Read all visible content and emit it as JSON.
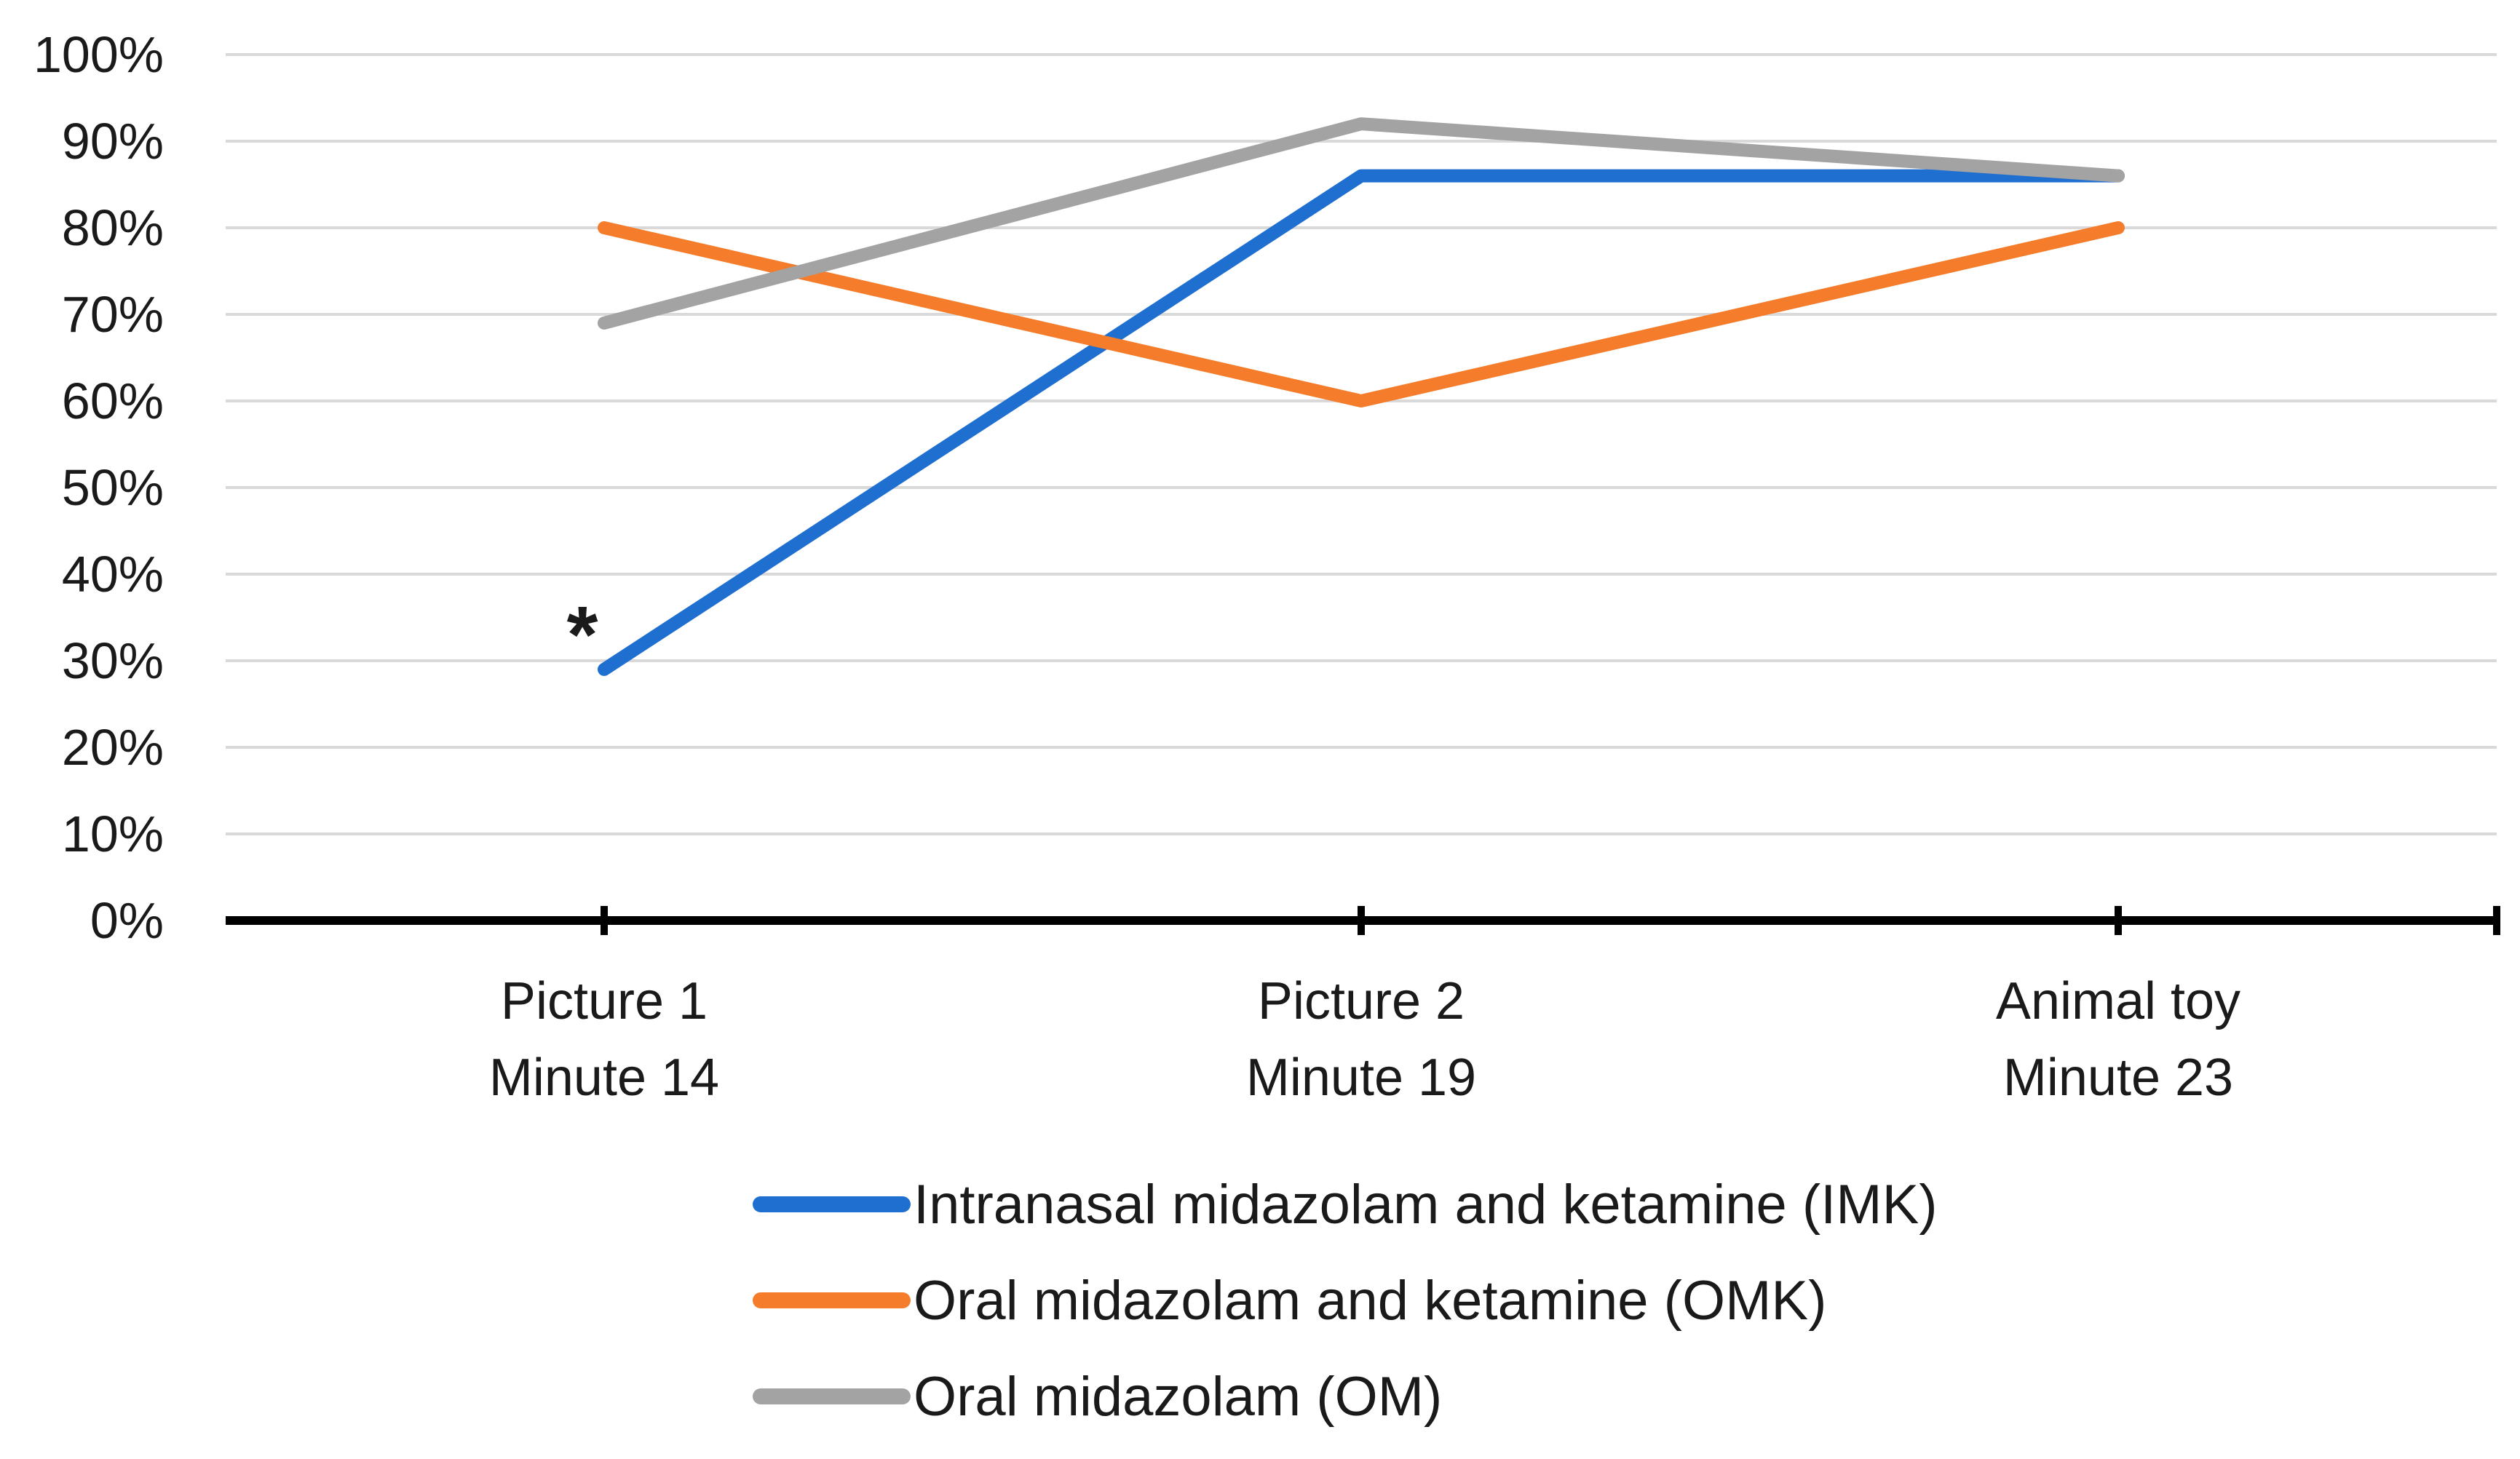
{
  "chart_data": {
    "type": "line",
    "title": "",
    "xlabel": "",
    "ylabel": "",
    "ylim": [
      0,
      100
    ],
    "y_ticks": [
      "0%",
      "10%",
      "20%",
      "30%",
      "40%",
      "50%",
      "60%",
      "70%",
      "80%",
      "90%",
      "100%"
    ],
    "categories": [
      [
        "Picture 1",
        "Minute 14"
      ],
      [
        "Picture 2",
        "Minute 19"
      ],
      [
        "Animal toy",
        "Minute 23"
      ]
    ],
    "series": [
      {
        "name": "Intranasal midazolam and ketamine (IMK)",
        "color": "#1f6fd1",
        "values": [
          29,
          86,
          86
        ]
      },
      {
        "name": "Oral midazolam and ketamine (OMK)",
        "color": "#f47c2a",
        "values": [
          80,
          60,
          80
        ]
      },
      {
        "name": "Oral midazolam (OM)",
        "color": "#a3a3a3",
        "values": [
          69,
          92,
          86
        ]
      }
    ],
    "annotations": [
      {
        "text": "*",
        "series": 0,
        "category": 0
      }
    ],
    "grid": true,
    "legend_position": "bottom"
  }
}
